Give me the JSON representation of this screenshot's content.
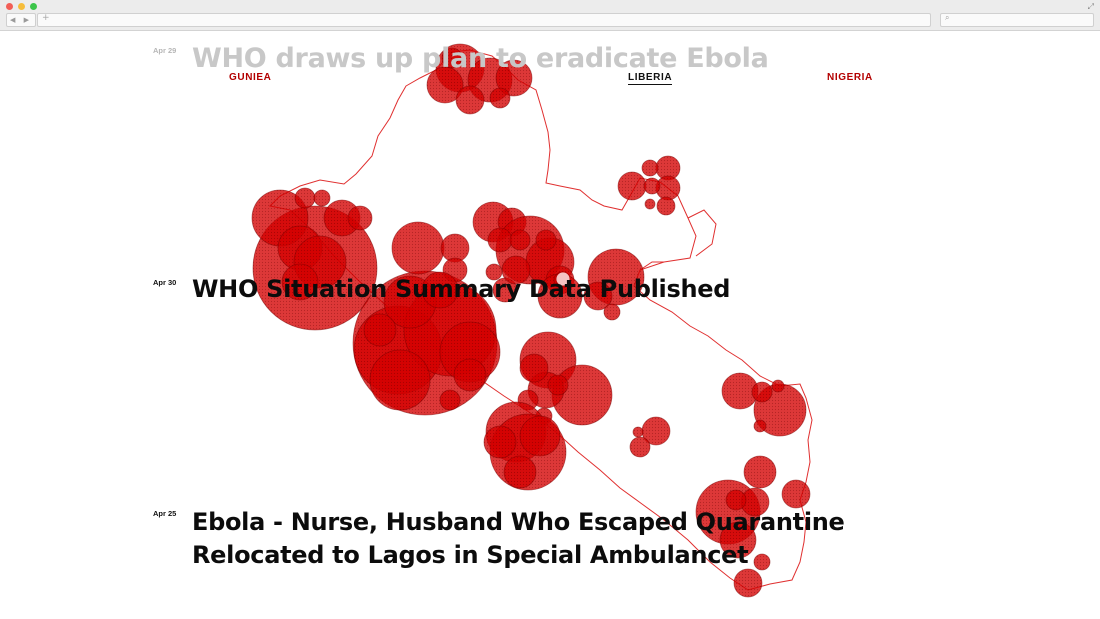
{
  "browser": {
    "nav_label": "◀ ▶",
    "new_tab_label": "+",
    "search_icon": "search-icon",
    "expand_icon": "expand-icon"
  },
  "countries": [
    {
      "label": "GUNIEA",
      "active": false
    },
    {
      "label": "LIBERIA",
      "active": true
    },
    {
      "label": "NIGERIA",
      "active": false
    }
  ],
  "stories": [
    {
      "date": "Apr 29",
      "headline": "WHO draws up plan to eradicate Ebola",
      "faded": true
    },
    {
      "date": "Apr 30",
      "headline": "WHO Situation Summary Data Published",
      "faded": false
    },
    {
      "date": "Apr 25",
      "headline": "Ebola - Nurse, Husband Who Escaped Quarantine Relocated to Lagos in Special Ambulancet",
      "faded": false
    }
  ],
  "colors": {
    "accent": "#b30000",
    "outbreak_fill": "#d30000",
    "outline": "#e03030",
    "headline": "#0c0c0c",
    "faded_headline": "#c8c8c8"
  }
}
